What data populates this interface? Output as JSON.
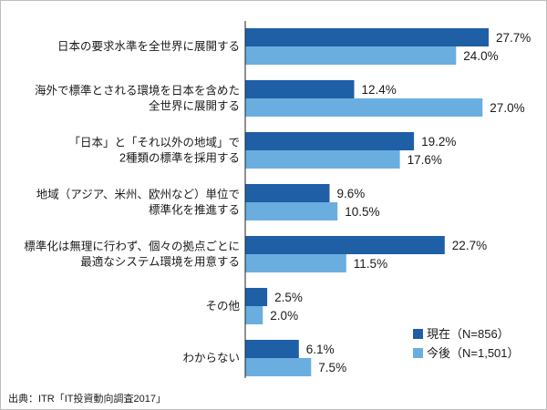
{
  "chart_data": {
    "type": "bar",
    "orientation": "horizontal",
    "categories": [
      [
        "日本の要求水準を全世界に展開する"
      ],
      [
        "海外で標準とされる環境を日本を含めた",
        "全世界に展開する"
      ],
      [
        "「日本」と「それ以外の地域」で",
        "2種類の標準を採用する"
      ],
      [
        "地域（アジア、米州、欧州など）単位で",
        "標準化を推進する"
      ],
      [
        "標準化は無理に行わず、個々の拠点ごとに",
        "最適なシステム環境を用意する"
      ],
      [
        "その他"
      ],
      [
        "わからない"
      ]
    ],
    "series": [
      {
        "name": "現在（N=856）",
        "color": "#1f5fa6",
        "values": [
          27.7,
          12.4,
          19.2,
          9.6,
          22.7,
          2.5,
          6.1
        ],
        "labels": [
          "27.7%",
          "12.4%",
          "19.2%",
          "9.6%",
          "22.7%",
          "2.5%",
          "6.1%"
        ]
      },
      {
        "name": "今後（N=1,501）",
        "color": "#6aaee0",
        "values": [
          24.0,
          27.0,
          17.6,
          10.5,
          11.5,
          2.0,
          7.5
        ],
        "labels": [
          "24.0%",
          "27.0%",
          "17.6%",
          "10.5%",
          "11.5%",
          "2.0%",
          "7.5%"
        ]
      }
    ],
    "xlim": [
      0,
      30
    ],
    "grid": false,
    "legend_position": "bottom-right"
  },
  "source": "出典：ITR「IT投資動向調査2017」"
}
